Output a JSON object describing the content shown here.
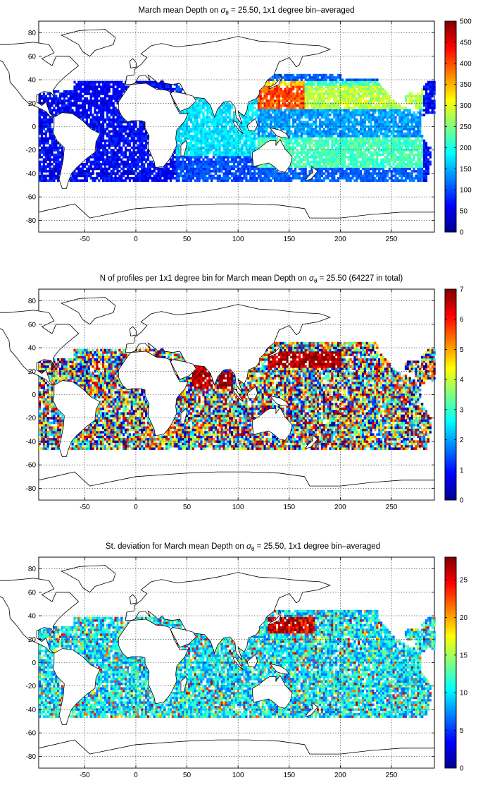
{
  "figure": {
    "panels": [
      {
        "title_pre": "March mean Depth on ",
        "title_sigma": "σ",
        "title_sub": "θ",
        "title_post": " = 25.50, 1x1 degree bin–averaged",
        "colorbar": {
          "min": 0,
          "max": 500,
          "ticks": [
            "0",
            "50",
            "100",
            "150",
            "200",
            "250",
            "300",
            "350",
            "400",
            "450",
            "500"
          ]
        }
      },
      {
        "title_pre": "N of profiles per 1x1 degree bin for March mean Depth on ",
        "title_sigma": "σ",
        "title_sub": "θ",
        "title_post": " = 25.50 (64227 in total)",
        "colorbar": {
          "min": 0,
          "max": 7,
          "ticks": [
            "0",
            "1",
            "2",
            "3",
            "4",
            "5",
            "6",
            "7"
          ]
        }
      },
      {
        "title_pre": "St. deviation for March mean Depth on ",
        "title_sigma": "σ",
        "title_sub": "θ",
        "title_post": " = 25.50, 1x1 degree bin–averaged",
        "colorbar": {
          "min": 0,
          "max": 28,
          "ticks": [
            "0",
            "5",
            "10",
            "15",
            "20",
            "25"
          ]
        }
      }
    ],
    "x_ticks": [
      "-50",
      "0",
      "50",
      "100",
      "150",
      "200",
      "250"
    ],
    "y_ticks": [
      "80",
      "60",
      "40",
      "20",
      "0",
      "-20",
      "-40",
      "-60",
      "-80"
    ]
  },
  "chart_data": [
    {
      "type": "heatmap",
      "title": "March mean Depth on σθ = 25.50, 1x1 degree bin–averaged",
      "xlim": [
        -95,
        292
      ],
      "ylim": [
        -90,
        90
      ],
      "xticks": [
        -50,
        0,
        50,
        100,
        150,
        200,
        250
      ],
      "yticks": [
        -80,
        -60,
        -40,
        -20,
        0,
        20,
        40,
        60,
        80
      ],
      "colorbar_range": [
        0,
        500
      ],
      "colormap": "jet",
      "grid": true,
      "regions": [
        {
          "lon": [
            145,
            160
          ],
          "lat": [
            22,
            36
          ],
          "value": 420
        },
        {
          "lon": [
            160,
            230
          ],
          "lat": [
            20,
            32
          ],
          "value": 300
        },
        {
          "lon": [
            120,
            280
          ],
          "lat": [
            -8,
            18
          ],
          "value": 160
        },
        {
          "lon": [
            150,
            260
          ],
          "lat": [
            -30,
            -10
          ],
          "value": 230
        },
        {
          "lon": [
            50,
            110
          ],
          "lat": [
            -20,
            10
          ],
          "value": 180
        },
        {
          "lon": [
            -80,
            20
          ],
          "lat": [
            -40,
            30
          ],
          "value": 60
        }
      ]
    },
    {
      "type": "heatmap",
      "title": "N of profiles per 1x1 degree bin for March mean Depth on σθ = 25.50 (64227 in total)",
      "total_profiles": 64227,
      "xlim": [
        -95,
        292
      ],
      "ylim": [
        -90,
        90
      ],
      "xticks": [
        -50,
        0,
        50,
        100,
        150,
        200,
        250
      ],
      "yticks": [
        -80,
        -60,
        -40,
        -20,
        0,
        20,
        40,
        60,
        80
      ],
      "colorbar_range": [
        0,
        7
      ],
      "colormap": "jet",
      "grid": true,
      "regions": [
        {
          "lon": [
            130,
            200
          ],
          "lat": [
            22,
            38
          ],
          "value": 7
        },
        {
          "lon": [
            55,
            75
          ],
          "lat": [
            5,
            25
          ],
          "value": 7
        },
        {
          "lon": [
            82,
            95
          ],
          "lat": [
            5,
            20
          ],
          "value": 7
        },
        {
          "lon": [
            -80,
            290
          ],
          "lat": [
            -45,
            30
          ],
          "value": 3
        }
      ]
    },
    {
      "type": "heatmap",
      "title": "St. deviation for March mean Depth on σθ = 25.50, 1x1 degree bin–averaged",
      "xlim": [
        -95,
        292
      ],
      "ylim": [
        -90,
        90
      ],
      "xticks": [
        -50,
        0,
        50,
        100,
        150,
        200,
        250
      ],
      "yticks": [
        -80,
        -60,
        -40,
        -20,
        0,
        20,
        40,
        60,
        80
      ],
      "colorbar_range": [
        0,
        28
      ],
      "colormap": "jet",
      "grid": true,
      "regions": [
        {
          "lon": [
            130,
            175
          ],
          "lat": [
            25,
            40
          ],
          "value": 27
        },
        {
          "lon": [
            -80,
            290
          ],
          "lat": [
            -45,
            30
          ],
          "value": 9
        }
      ]
    }
  ]
}
